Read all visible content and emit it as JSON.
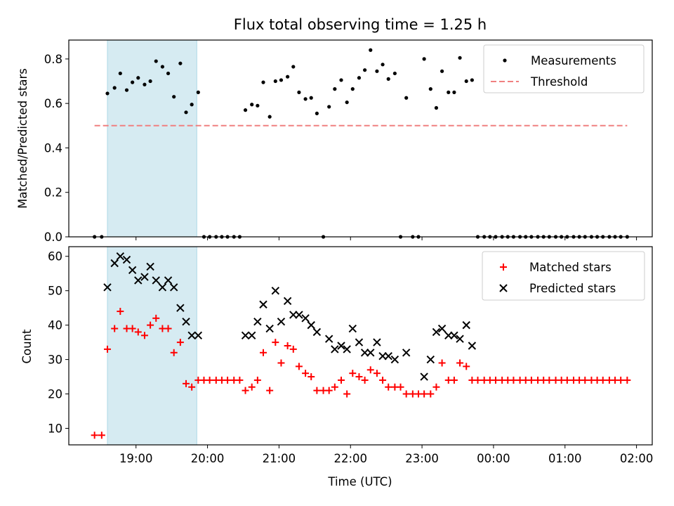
{
  "chart_data": [
    {
      "type": "scatter",
      "title": "Flux total observing time = 1.25 h",
      "ylabel": "Matched/Predicted stars",
      "xlabel": "",
      "ylim": [
        0,
        0.885
      ],
      "yticks": [
        0.0,
        0.2,
        0.4,
        0.6,
        0.8
      ],
      "ytick_labels": [
        "0.0",
        "0.2",
        "0.4",
        "0.6",
        "0.8"
      ],
      "xticks": [
        19,
        20,
        21,
        22,
        23,
        24,
        25,
        26
      ],
      "highlight_span": [
        18.6,
        19.85
      ],
      "highlight_color": "#add8e6",
      "legend_position": "upper right",
      "series": [
        {
          "name": "Measurements",
          "marker": "dot",
          "color": "#000000",
          "points": [
            [
              18.42,
              0.0
            ],
            [
              18.52,
              0.0
            ],
            [
              18.6,
              0.645
            ],
            [
              18.7,
              0.67
            ],
            [
              18.78,
              0.735
            ],
            [
              18.87,
              0.66
            ],
            [
              18.95,
              0.695
            ],
            [
              19.03,
              0.715
            ],
            [
              19.12,
              0.685
            ],
            [
              19.2,
              0.7
            ],
            [
              19.28,
              0.79
            ],
            [
              19.37,
              0.765
            ],
            [
              19.45,
              0.735
            ],
            [
              19.53,
              0.63
            ],
            [
              19.62,
              0.78
            ],
            [
              19.7,
              0.56
            ],
            [
              19.78,
              0.595
            ],
            [
              19.87,
              0.65
            ],
            [
              19.95,
              0.0
            ],
            [
              20.03,
              0.0
            ],
            [
              20.12,
              0.0
            ],
            [
              20.2,
              0.0
            ],
            [
              20.28,
              0.0
            ],
            [
              20.37,
              0.0
            ],
            [
              20.45,
              0.0
            ],
            [
              20.53,
              0.57
            ],
            [
              20.62,
              0.595
            ],
            [
              20.7,
              0.59
            ],
            [
              20.78,
              0.695
            ],
            [
              20.87,
              0.54
            ],
            [
              20.95,
              0.7
            ],
            [
              21.03,
              0.705
            ],
            [
              21.12,
              0.72
            ],
            [
              21.2,
              0.765
            ],
            [
              21.28,
              0.65
            ],
            [
              21.37,
              0.62
            ],
            [
              21.45,
              0.625
            ],
            [
              21.53,
              0.555
            ],
            [
              21.62,
              0.0
            ],
            [
              21.7,
              0.585
            ],
            [
              21.78,
              0.665
            ],
            [
              21.87,
              0.705
            ],
            [
              21.95,
              0.605
            ],
            [
              22.03,
              0.665
            ],
            [
              22.12,
              0.715
            ],
            [
              22.2,
              0.75
            ],
            [
              22.28,
              0.84
            ],
            [
              22.37,
              0.745
            ],
            [
              22.45,
              0.775
            ],
            [
              22.53,
              0.71
            ],
            [
              22.62,
              0.735
            ],
            [
              22.7,
              0.0
            ],
            [
              22.78,
              0.625
            ],
            [
              22.87,
              0.0
            ],
            [
              22.95,
              0.0
            ],
            [
              23.03,
              0.8
            ],
            [
              23.12,
              0.665
            ],
            [
              23.2,
              0.58
            ],
            [
              23.28,
              0.745
            ],
            [
              23.37,
              0.65
            ],
            [
              23.45,
              0.65
            ],
            [
              23.53,
              0.805
            ],
            [
              23.62,
              0.7
            ],
            [
              23.7,
              0.705
            ],
            [
              23.78,
              0.0
            ],
            [
              23.87,
              0.0
            ],
            [
              23.95,
              0.0
            ],
            [
              24.03,
              0.0
            ],
            [
              24.12,
              0.0
            ],
            [
              24.2,
              0.0
            ],
            [
              24.28,
              0.0
            ],
            [
              24.37,
              0.0
            ],
            [
              24.45,
              0.0
            ],
            [
              24.53,
              0.0
            ],
            [
              24.62,
              0.0
            ],
            [
              24.7,
              0.0
            ],
            [
              24.78,
              0.0
            ],
            [
              24.87,
              0.0
            ],
            [
              24.95,
              0.0
            ],
            [
              25.03,
              0.0
            ],
            [
              25.12,
              0.0
            ],
            [
              25.2,
              0.0
            ],
            [
              25.28,
              0.0
            ],
            [
              25.37,
              0.0
            ],
            [
              25.45,
              0.0
            ],
            [
              25.53,
              0.0
            ],
            [
              25.62,
              0.0
            ],
            [
              25.7,
              0.0
            ],
            [
              25.78,
              0.0
            ],
            [
              25.87,
              0.0
            ]
          ]
        },
        {
          "name": "Threshold",
          "marker": "dashed-line",
          "color": "#f08080",
          "points": [
            [
              18.42,
              0.5
            ],
            [
              25.87,
              0.5
            ]
          ]
        }
      ]
    },
    {
      "type": "scatter",
      "title": "",
      "ylabel": "Count",
      "xlabel": "Time (UTC)",
      "ylim": [
        5.2,
        62.8
      ],
      "yticks": [
        10,
        20,
        30,
        40,
        50,
        60
      ],
      "ytick_labels": [
        "10",
        "20",
        "30",
        "40",
        "50",
        "60"
      ],
      "xticks": [
        19,
        20,
        21,
        22,
        23,
        24,
        25,
        26
      ],
      "xtick_labels": [
        "19:00",
        "20:00",
        "21:00",
        "22:00",
        "23:00",
        "00:00",
        "01:00",
        "02:00"
      ],
      "highlight_span": [
        18.6,
        19.85
      ],
      "highlight_color": "#add8e6",
      "legend_position": "upper right",
      "series": [
        {
          "name": "Matched stars",
          "marker": "plus",
          "color": "#ff0000",
          "points": [
            [
              18.42,
              8
            ],
            [
              18.52,
              8
            ],
            [
              18.6,
              33
            ],
            [
              18.7,
              39
            ],
            [
              18.78,
              44
            ],
            [
              18.87,
              39
            ],
            [
              18.95,
              39
            ],
            [
              19.03,
              38
            ],
            [
              19.12,
              37
            ],
            [
              19.2,
              40
            ],
            [
              19.28,
              42
            ],
            [
              19.37,
              39
            ],
            [
              19.45,
              39
            ],
            [
              19.53,
              32
            ],
            [
              19.62,
              35
            ],
            [
              19.7,
              23
            ],
            [
              19.78,
              22
            ],
            [
              19.87,
              24
            ],
            [
              19.95,
              24
            ],
            [
              20.03,
              24
            ],
            [
              20.12,
              24
            ],
            [
              20.2,
              24
            ],
            [
              20.28,
              24
            ],
            [
              20.37,
              24
            ],
            [
              20.45,
              24
            ],
            [
              20.53,
              21
            ],
            [
              20.62,
              22
            ],
            [
              20.7,
              24
            ],
            [
              20.78,
              32
            ],
            [
              20.87,
              21
            ],
            [
              20.95,
              35
            ],
            [
              21.03,
              29
            ],
            [
              21.12,
              34
            ],
            [
              21.2,
              33
            ],
            [
              21.28,
              28
            ],
            [
              21.37,
              26
            ],
            [
              21.45,
              25
            ],
            [
              21.53,
              21
            ],
            [
              21.62,
              21
            ],
            [
              21.7,
              21
            ],
            [
              21.78,
              22
            ],
            [
              21.87,
              24
            ],
            [
              21.95,
              20
            ],
            [
              22.03,
              26
            ],
            [
              22.12,
              25
            ],
            [
              22.2,
              24
            ],
            [
              22.28,
              27
            ],
            [
              22.37,
              26
            ],
            [
              22.45,
              24
            ],
            [
              22.53,
              22
            ],
            [
              22.62,
              22
            ],
            [
              22.7,
              22
            ],
            [
              22.78,
              20
            ],
            [
              22.87,
              20
            ],
            [
              22.95,
              20
            ],
            [
              23.03,
              20
            ],
            [
              23.12,
              20
            ],
            [
              23.2,
              22
            ],
            [
              23.28,
              29
            ],
            [
              23.37,
              24
            ],
            [
              23.45,
              24
            ],
            [
              23.53,
              29
            ],
            [
              23.62,
              28
            ],
            [
              23.7,
              24
            ],
            [
              23.78,
              24
            ],
            [
              23.87,
              24
            ],
            [
              23.95,
              24
            ],
            [
              24.03,
              24
            ],
            [
              24.12,
              24
            ],
            [
              24.2,
              24
            ],
            [
              24.28,
              24
            ],
            [
              24.37,
              24
            ],
            [
              24.45,
              24
            ],
            [
              24.53,
              24
            ],
            [
              24.62,
              24
            ],
            [
              24.7,
              24
            ],
            [
              24.78,
              24
            ],
            [
              24.87,
              24
            ],
            [
              24.95,
              24
            ],
            [
              25.03,
              24
            ],
            [
              25.12,
              24
            ],
            [
              25.2,
              24
            ],
            [
              25.28,
              24
            ],
            [
              25.37,
              24
            ],
            [
              25.45,
              24
            ],
            [
              25.53,
              24
            ],
            [
              25.62,
              24
            ],
            [
              25.7,
              24
            ],
            [
              25.78,
              24
            ],
            [
              25.87,
              24
            ]
          ]
        },
        {
          "name": "Predicted stars",
          "marker": "x",
          "color": "#000000",
          "points": [
            [
              18.6,
              51
            ],
            [
              18.7,
              58
            ],
            [
              18.78,
              60
            ],
            [
              18.87,
              59
            ],
            [
              18.95,
              56
            ],
            [
              19.03,
              53
            ],
            [
              19.12,
              54
            ],
            [
              19.2,
              57
            ],
            [
              19.28,
              53
            ],
            [
              19.37,
              51
            ],
            [
              19.45,
              53
            ],
            [
              19.53,
              51
            ],
            [
              19.62,
              45
            ],
            [
              19.7,
              41
            ],
            [
              19.78,
              37
            ],
            [
              19.87,
              37
            ],
            [
              20.53,
              37
            ],
            [
              20.62,
              37
            ],
            [
              20.7,
              41
            ],
            [
              20.78,
              46
            ],
            [
              20.87,
              39
            ],
            [
              20.95,
              50
            ],
            [
              21.03,
              41
            ],
            [
              21.12,
              47
            ],
            [
              21.2,
              43
            ],
            [
              21.28,
              43
            ],
            [
              21.37,
              42
            ],
            [
              21.45,
              40
            ],
            [
              21.53,
              38
            ],
            [
              21.7,
              36
            ],
            [
              21.78,
              33
            ],
            [
              21.87,
              34
            ],
            [
              21.95,
              33
            ],
            [
              22.03,
              39
            ],
            [
              22.12,
              35
            ],
            [
              22.2,
              32
            ],
            [
              22.28,
              32
            ],
            [
              22.37,
              35
            ],
            [
              22.45,
              31
            ],
            [
              22.53,
              31
            ],
            [
              22.62,
              30
            ],
            [
              22.78,
              32
            ],
            [
              23.03,
              25
            ],
            [
              23.12,
              30
            ],
            [
              23.2,
              38
            ],
            [
              23.28,
              39
            ],
            [
              23.37,
              37
            ],
            [
              23.45,
              37
            ],
            [
              23.53,
              36
            ],
            [
              23.62,
              40
            ],
            [
              23.7,
              34
            ]
          ]
        }
      ]
    }
  ]
}
